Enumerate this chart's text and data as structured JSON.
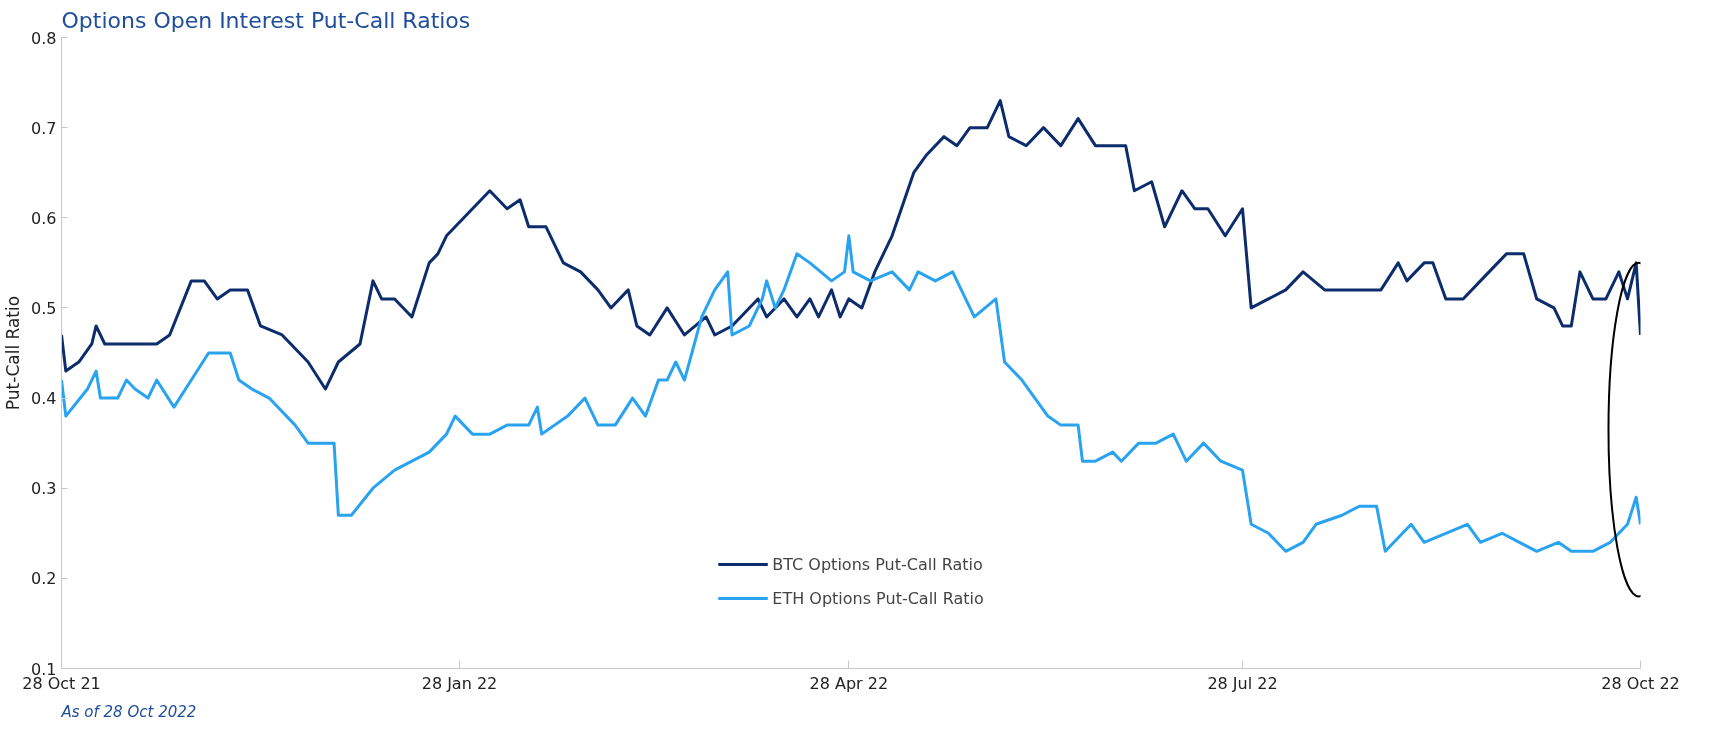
{
  "chart_data": {
    "type": "line",
    "title": "Options Open Interest Put-Call Ratios",
    "ylabel": "Put-Call Ratio",
    "annotations": [
      "As of 28 Oct 2022"
    ],
    "xlim": [
      "2021-10-28",
      "2022-10-28"
    ],
    "xticks": [
      {
        "value": "2021-10-28",
        "label": "28 Oct 21"
      },
      {
        "value": "2022-01-28",
        "label": "28 Jan 22"
      },
      {
        "value": "2022-04-28",
        "label": "28 Apr 22"
      },
      {
        "value": "2022-07-28",
        "label": "28 Jul 22"
      },
      {
        "value": "2022-10-28",
        "label": "28 Oct 22"
      }
    ],
    "ylim": [
      0.1,
      0.8
    ],
    "yticks": [
      0.1,
      0.2,
      0.3,
      0.4,
      0.5,
      0.6,
      0.7,
      0.8
    ],
    "grid": false,
    "legend": "bottom",
    "line_style": "solid",
    "series": [
      {
        "name": "BTC Options Put-Call Ratio",
        "color": "#0d2c6c",
        "x": [
          "2021-10-28",
          "2021-10-29",
          "2021-11-01",
          "2021-11-04",
          "2021-11-05",
          "2021-11-07",
          "2021-11-13",
          "2021-11-17",
          "2021-11-19",
          "2021-11-22",
          "2021-11-27",
          "2021-11-30",
          "2021-12-03",
          "2021-12-06",
          "2021-12-10",
          "2021-12-13",
          "2021-12-18",
          "2021-12-24",
          "2021-12-28",
          "2021-12-31",
          "2022-01-05",
          "2022-01-08",
          "2022-01-10",
          "2022-01-13",
          "2022-01-17",
          "2022-01-21",
          "2022-01-23",
          "2022-01-25",
          "2022-01-29",
          "2022-02-02",
          "2022-02-04",
          "2022-02-08",
          "2022-02-11",
          "2022-02-13",
          "2022-02-17",
          "2022-02-21",
          "2022-02-25",
          "2022-03-01",
          "2022-03-04",
          "2022-03-08",
          "2022-03-10",
          "2022-03-13",
          "2022-03-17",
          "2022-03-21",
          "2022-03-26",
          "2022-03-28",
          "2022-04-01",
          "2022-04-03",
          "2022-04-07",
          "2022-04-09",
          "2022-04-13",
          "2022-04-16",
          "2022-04-19",
          "2022-04-21",
          "2022-04-24",
          "2022-04-26",
          "2022-04-28",
          "2022-05-01",
          "2022-05-04",
          "2022-05-08",
          "2022-05-13",
          "2022-05-16",
          "2022-05-20",
          "2022-05-23",
          "2022-05-26",
          "2022-05-30",
          "2022-06-02",
          "2022-06-04",
          "2022-06-08",
          "2022-06-12",
          "2022-06-16",
          "2022-06-20",
          "2022-06-24",
          "2022-06-28",
          "2022-07-01",
          "2022-07-03",
          "2022-07-07",
          "2022-07-10",
          "2022-07-14",
          "2022-07-17",
          "2022-07-20",
          "2022-07-24",
          "2022-07-28",
          "2022-07-30",
          "2022-08-03",
          "2022-08-07",
          "2022-08-11",
          "2022-08-16",
          "2022-08-23",
          "2022-08-29",
          "2022-09-02",
          "2022-09-04",
          "2022-09-08",
          "2022-09-10",
          "2022-09-13",
          "2022-09-17",
          "2022-09-21",
          "2022-09-25",
          "2022-09-27",
          "2022-10-01",
          "2022-10-04",
          "2022-10-08",
          "2022-10-10",
          "2022-10-12",
          "2022-10-14",
          "2022-10-17",
          "2022-10-20",
          "2022-10-23",
          "2022-10-25",
          "2022-10-27",
          "2022-10-28"
        ],
        "values": [
          0.47,
          0.43,
          0.44,
          0.46,
          0.48,
          0.46,
          0.46,
          0.46,
          0.46,
          0.47,
          0.53,
          0.53,
          0.51,
          0.52,
          0.52,
          0.48,
          0.47,
          0.44,
          0.41,
          0.44,
          0.46,
          0.53,
          0.51,
          0.51,
          0.49,
          0.55,
          0.56,
          0.58,
          0.6,
          0.62,
          0.63,
          0.61,
          0.62,
          0.59,
          0.59,
          0.55,
          0.54,
          0.52,
          0.5,
          0.52,
          0.48,
          0.47,
          0.5,
          0.47,
          0.49,
          0.47,
          0.48,
          0.49,
          0.51,
          0.49,
          0.51,
          0.49,
          0.51,
          0.49,
          0.52,
          0.49,
          0.51,
          0.5,
          0.54,
          0.58,
          0.65,
          0.67,
          0.69,
          0.68,
          0.7,
          0.7,
          0.73,
          0.69,
          0.68,
          0.7,
          0.68,
          0.71,
          0.68,
          0.68,
          0.68,
          0.63,
          0.64,
          0.59,
          0.63,
          0.61,
          0.61,
          0.58,
          0.61,
          0.5,
          0.51,
          0.52,
          0.54,
          0.52,
          0.52,
          0.52,
          0.55,
          0.53,
          0.55,
          0.55,
          0.51,
          0.51,
          0.53,
          0.55,
          0.56,
          0.56,
          0.51,
          0.5,
          0.48,
          0.48,
          0.54,
          0.51,
          0.51,
          0.54,
          0.51,
          0.55,
          0.47
        ]
      },
      {
        "name": "ETH Options Put-Call Ratio",
        "color": "#29a3f0",
        "x": [
          "2021-10-28",
          "2021-10-29",
          "2021-11-03",
          "2021-11-05",
          "2021-11-06",
          "2021-11-10",
          "2021-11-12",
          "2021-11-14",
          "2021-11-17",
          "2021-11-19",
          "2021-11-23",
          "2021-11-27",
          "2021-12-01",
          "2021-12-06",
          "2021-12-08",
          "2021-12-11",
          "2021-12-15",
          "2021-12-21",
          "2021-12-24",
          "2021-12-30",
          "2021-12-31",
          "2022-01-03",
          "2022-01-08",
          "2022-01-13",
          "2022-01-17",
          "2022-01-21",
          "2022-01-25",
          "2022-01-27",
          "2022-01-31",
          "2022-02-04",
          "2022-02-08",
          "2022-02-13",
          "2022-02-15",
          "2022-02-16",
          "2022-02-22",
          "2022-02-26",
          "2022-03-01",
          "2022-03-05",
          "2022-03-09",
          "2022-03-12",
          "2022-03-15",
          "2022-03-17",
          "2022-03-19",
          "2022-03-21",
          "2022-03-25",
          "2022-03-28",
          "2022-03-31",
          "2022-04-01",
          "2022-04-05",
          "2022-04-08",
          "2022-04-09",
          "2022-04-11",
          "2022-04-13",
          "2022-04-16",
          "2022-04-19",
          "2022-04-24",
          "2022-04-27",
          "2022-04-28",
          "2022-04-29",
          "2022-05-03",
          "2022-05-08",
          "2022-05-12",
          "2022-05-14",
          "2022-05-18",
          "2022-05-22",
          "2022-05-25",
          "2022-05-27",
          "2022-06-01",
          "2022-06-03",
          "2022-06-07",
          "2022-06-10",
          "2022-06-13",
          "2022-06-16",
          "2022-06-20",
          "2022-06-21",
          "2022-06-24",
          "2022-06-28",
          "2022-06-30",
          "2022-07-04",
          "2022-07-08",
          "2022-07-12",
          "2022-07-15",
          "2022-07-19",
          "2022-07-23",
          "2022-07-28",
          "2022-07-30",
          "2022-08-03",
          "2022-08-07",
          "2022-08-11",
          "2022-08-14",
          "2022-08-20",
          "2022-08-24",
          "2022-08-28",
          "2022-08-30",
          "2022-09-05",
          "2022-09-08",
          "2022-09-13",
          "2022-09-18",
          "2022-09-21",
          "2022-09-26",
          "2022-09-30",
          "2022-10-04",
          "2022-10-09",
          "2022-10-12",
          "2022-10-17",
          "2022-10-21",
          "2022-10-23",
          "2022-10-25",
          "2022-10-27",
          "2022-10-28"
        ],
        "values": [
          0.42,
          0.38,
          0.41,
          0.43,
          0.4,
          0.4,
          0.42,
          0.41,
          0.4,
          0.42,
          0.39,
          0.42,
          0.45,
          0.45,
          0.42,
          0.41,
          0.4,
          0.37,
          0.35,
          0.35,
          0.27,
          0.27,
          0.3,
          0.32,
          0.33,
          0.34,
          0.36,
          0.38,
          0.36,
          0.36,
          0.37,
          0.37,
          0.39,
          0.36,
          0.38,
          0.4,
          0.37,
          0.37,
          0.4,
          0.38,
          0.42,
          0.42,
          0.44,
          0.42,
          0.49,
          0.52,
          0.54,
          0.47,
          0.48,
          0.51,
          0.53,
          0.5,
          0.52,
          0.56,
          0.55,
          0.53,
          0.54,
          0.58,
          0.54,
          0.53,
          0.54,
          0.52,
          0.54,
          0.53,
          0.54,
          0.51,
          0.49,
          0.51,
          0.44,
          0.42,
          0.4,
          0.38,
          0.37,
          0.37,
          0.33,
          0.33,
          0.34,
          0.33,
          0.35,
          0.35,
          0.36,
          0.33,
          0.35,
          0.33,
          0.32,
          0.26,
          0.25,
          0.23,
          0.24,
          0.26,
          0.27,
          0.28,
          0.28,
          0.23,
          0.26,
          0.24,
          0.25,
          0.26,
          0.24,
          0.25,
          0.24,
          0.23,
          0.24,
          0.23,
          0.23,
          0.24,
          0.25,
          0.26,
          0.29,
          0.26
        ]
      }
    ]
  }
}
